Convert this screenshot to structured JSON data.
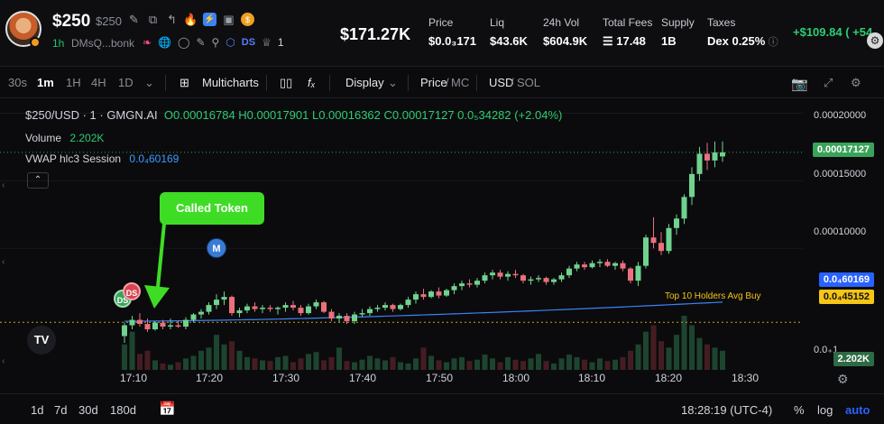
{
  "header": {
    "ticker": "$250",
    "ticker_sub": "$250",
    "timeframe": "1h",
    "address": "DMsQ...bonk",
    "ds_tag": "DS",
    "holders_count": "1",
    "market_cap": "$171.27K",
    "stats": [
      {
        "label": "Price",
        "value": "$0.0₃171"
      },
      {
        "label": "Liq",
        "value": "$43.6K"
      },
      {
        "label": "24h Vol",
        "value": "$604.9K"
      },
      {
        "label": "Total Fees",
        "value": "☰ 17.48"
      },
      {
        "label": "Supply",
        "value": "1B"
      },
      {
        "label": "Taxes",
        "value": "Dex 0.25%"
      }
    ],
    "pnl": "+$109.84 ( +54"
  },
  "toolbar": {
    "intervals": [
      "30s",
      "1m",
      "1H",
      "4H",
      "1D"
    ],
    "active_interval": "1m",
    "multicharts": "Multicharts",
    "display": "Display",
    "price": "Price",
    "mc": "MC",
    "usd": "USD",
    "sol": "SOL"
  },
  "chart": {
    "title": "$250/USD · 1 · GMGN.AI",
    "ohlc": "O0.00016784 H0.00017901 L0.00016362 C0.00017127 0.0₅34282 (+2.04%)",
    "volume_label": "Volume",
    "volume_value": "2.202K",
    "vwap_label": "VWAP hlc3 Session",
    "vwap_value": "0.0₄60169",
    "called_label": "Called Token",
    "m_badge": "M",
    "ds_badge": "DS",
    "ds_badge2": "DS",
    "top10_label": "Top 10 Holders Avg Buy",
    "tv_logo": "TV",
    "price_axis": [
      "0.00020000",
      "0.00015000",
      "0.00010000",
      "0.0₊1"
    ],
    "price_tags": {
      "current": "0.00017127",
      "vwap": "0.0₄60169",
      "top10": "0.0₄45152",
      "volume": "2.202K"
    },
    "time_axis": [
      "17:10",
      "17:20",
      "17:30",
      "17:40",
      "17:50",
      "18:00",
      "18:10",
      "18:20",
      "18:30"
    ]
  },
  "chart_data": {
    "type": "candlestick",
    "title": "$250/USD · 1 · GMGN.AI",
    "x": [
      "17:09",
      "17:10",
      "17:11",
      "17:12",
      "17:13",
      "17:14",
      "17:15",
      "17:16",
      "17:17",
      "17:18",
      "17:19",
      "17:20",
      "17:21",
      "17:22",
      "17:23",
      "17:24",
      "17:25",
      "17:26",
      "17:27",
      "17:28",
      "17:29",
      "17:30",
      "17:31",
      "17:32",
      "17:33",
      "17:34",
      "17:35",
      "17:36",
      "17:37",
      "17:38",
      "17:39",
      "17:40",
      "17:41",
      "17:42",
      "17:43",
      "17:44",
      "17:45",
      "17:46",
      "17:47",
      "17:48",
      "17:49",
      "17:50",
      "17:51",
      "17:52",
      "17:53",
      "17:54",
      "17:55",
      "17:56",
      "17:57",
      "17:58",
      "17:59",
      "18:00",
      "18:01",
      "18:02",
      "18:03",
      "18:04",
      "18:05",
      "18:06",
      "18:07",
      "18:08",
      "18:09",
      "18:10",
      "18:11",
      "18:12",
      "18:13",
      "18:14",
      "18:15",
      "18:16",
      "18:17",
      "18:18",
      "18:19",
      "18:20",
      "18:21",
      "18:22",
      "18:23",
      "18:24",
      "18:25",
      "18:26",
      "18:27"
    ],
    "series": [
      {
        "name": "Candles",
        "ohlc": [
          [
            3.5e-05,
            4.5e-05,
            3e-05,
            4.3e-05
          ],
          [
            4.3e-05,
            5e-05,
            4e-05,
            4.7e-05
          ],
          [
            4.7e-05,
            5.2e-05,
            4.2e-05,
            4.4e-05
          ],
          [
            4.4e-05,
            4.8e-05,
            3.8e-05,
            4e-05
          ],
          [
            4e-05,
            4.6e-05,
            3.9e-05,
            4.5e-05
          ],
          [
            4.5e-05,
            4.7e-05,
            4e-05,
            4.2e-05
          ],
          [
            4.2e-05,
            4.8e-05,
            4e-05,
            4.3e-05
          ],
          [
            4.3e-05,
            4.6e-05,
            4.1e-05,
            4.2e-05
          ],
          [
            4.2e-05,
            4.9e-05,
            4e-05,
            4.7e-05
          ],
          [
            4.7e-05,
            5.2e-05,
            4.5e-05,
            5.1e-05
          ],
          [
            5.1e-05,
            5.5e-05,
            4.8e-05,
            5.3e-05
          ],
          [
            5.3e-05,
            6e-05,
            5.1e-05,
            5.8e-05
          ],
          [
            5.8e-05,
            6.6e-05,
            5.5e-05,
            6.2e-05
          ],
          [
            6.2e-05,
            6.8e-05,
            5.8e-05,
            6.4e-05
          ],
          [
            6.4e-05,
            6.5e-05,
            5e-05,
            5.2e-05
          ],
          [
            5.2e-05,
            5.6e-05,
            4.9e-05,
            5.4e-05
          ],
          [
            5.4e-05,
            5.9e-05,
            5.2e-05,
            5.7e-05
          ],
          [
            5.7e-05,
            6e-05,
            5.3e-05,
            5.5e-05
          ],
          [
            5.5e-05,
            5.8e-05,
            5.2e-05,
            5.6e-05
          ],
          [
            5.6e-05,
            5.8e-05,
            5.3e-05,
            5.5e-05
          ],
          [
            5.5e-05,
            5.7e-05,
            5.1e-05,
            5.6e-05
          ],
          [
            5.6e-05,
            6e-05,
            5.3e-05,
            5.8e-05
          ],
          [
            5.8e-05,
            6.1e-05,
            5.4e-05,
            5.6e-05
          ],
          [
            5.6e-05,
            5.8e-05,
            5e-05,
            5.2e-05
          ],
          [
            5.2e-05,
            5.9e-05,
            5.1e-05,
            5.7e-05
          ],
          [
            5.7e-05,
            6.2e-05,
            5.5e-05,
            6e-05
          ],
          [
            6e-05,
            6.1e-05,
            5.2e-05,
            5.3e-05
          ],
          [
            5.3e-05,
            5.5e-05,
            4.6e-05,
            4.8e-05
          ],
          [
            4.8e-05,
            5.2e-05,
            4.5e-05,
            5e-05
          ],
          [
            5e-05,
            5.2e-05,
            4.4e-05,
            4.6e-05
          ],
          [
            4.6e-05,
            5.3e-05,
            4.4e-05,
            5.1e-05
          ],
          [
            5.1e-05,
            5.5e-05,
            4.9e-05,
            5.2e-05
          ],
          [
            5.2e-05,
            5.7e-05,
            5e-05,
            5.5e-05
          ],
          [
            5.5e-05,
            5.8e-05,
            5.3e-05,
            5.6e-05
          ],
          [
            5.6e-05,
            6e-05,
            5.4e-05,
            5.8e-05
          ],
          [
            5.8e-05,
            5.9e-05,
            5.3e-05,
            5.5e-05
          ],
          [
            5.5e-05,
            5.9e-05,
            5.4e-05,
            5.8e-05
          ],
          [
            5.8e-05,
            6.4e-05,
            5.6e-05,
            6.2e-05
          ],
          [
            6.2e-05,
            6.8e-05,
            5.9e-05,
            6.6e-05
          ],
          [
            6.6e-05,
            7e-05,
            6.2e-05,
            6.4e-05
          ],
          [
            6.4e-05,
            6.9e-05,
            6.3e-05,
            6.8e-05
          ],
          [
            6.8e-05,
            7.1e-05,
            6.3e-05,
            6.5e-05
          ],
          [
            6.5e-05,
            7e-05,
            6.4e-05,
            6.9e-05
          ],
          [
            6.9e-05,
            7.4e-05,
            6.6e-05,
            7.2e-05
          ],
          [
            7.2e-05,
            7.6e-05,
            6.9e-05,
            7.4e-05
          ],
          [
            7.4e-05,
            7.7e-05,
            7.1e-05,
            7.3e-05
          ],
          [
            7.3e-05,
            7.8e-05,
            7.1e-05,
            7.6e-05
          ],
          [
            7.6e-05,
            8.2e-05,
            7.4e-05,
            8e-05
          ],
          [
            8e-05,
            8.4e-05,
            7.7e-05,
            8.2e-05
          ],
          [
            8.2e-05,
            8.4e-05,
            7.7e-05,
            7.9e-05
          ],
          [
            7.9e-05,
            8.3e-05,
            7.6e-05,
            8.1e-05
          ],
          [
            8.1e-05,
            8.4e-05,
            7.8e-05,
            8e-05
          ],
          [
            8e-05,
            8.1e-05,
            7.4e-05,
            7.6e-05
          ],
          [
            7.6e-05,
            7.9e-05,
            7.3e-05,
            7.7e-05
          ],
          [
            7.7e-05,
            8e-05,
            7.5e-05,
            7.8e-05
          ],
          [
            7.8e-05,
            7.9e-05,
            7.3e-05,
            7.5e-05
          ],
          [
            7.5e-05,
            7.8e-05,
            7.3e-05,
            7.7e-05
          ],
          [
            7.7e-05,
            8.2e-05,
            7.5e-05,
            8e-05
          ],
          [
            8e-05,
            8.7e-05,
            7.8e-05,
            8.5e-05
          ],
          [
            8.5e-05,
            9e-05,
            8.3e-05,
            8.8e-05
          ],
          [
            8.8e-05,
            9e-05,
            8.4e-05,
            8.6e-05
          ],
          [
            8.6e-05,
            9.1e-05,
            8.5e-05,
            8.9e-05
          ],
          [
            8.9e-05,
            9.2e-05,
            8.6e-05,
            9e-05
          ],
          [
            9e-05,
            9.2e-05,
            8.6e-05,
            8.7e-05
          ],
          [
            8.7e-05,
            9e-05,
            8.4e-05,
            8.9e-05
          ],
          [
            8.9e-05,
            9.1e-05,
            8.3e-05,
            8.5e-05
          ],
          [
            8.5e-05,
            8.6e-05,
            7.4e-05,
            7.6e-05
          ],
          [
            7.6e-05,
            9e-05,
            7.2e-05,
            8.7e-05
          ],
          [
            8.7e-05,
            0.00011,
            8.5e-05,
            0.000108
          ],
          [
            0.000108,
            0.000123,
            0.0001,
            0.000104
          ],
          [
            0.000104,
            0.000112,
            9.5e-05,
            9.8e-05
          ],
          [
            9.8e-05,
            0.000118,
            9.6e-05,
            0.000115
          ],
          [
            0.000115,
            0.000125,
            0.00011,
            0.000122
          ],
          [
            0.000122,
            0.00014,
            0.000118,
            0.000138
          ],
          [
            0.000138,
            0.00016,
            0.000132,
            0.000155
          ],
          [
            0.000155,
            0.000175,
            0.00015,
            0.00017
          ],
          [
            0.00017,
            0.000178,
            0.000158,
            0.000165
          ],
          [
            0.000165,
            0.000179,
            0.00016,
            0.000171
          ],
          [
            0.000168,
            0.000179,
            0.000164,
            0.000171
          ]
        ]
      },
      {
        "name": "Volume",
        "values": [
          40,
          60,
          25,
          30,
          15,
          10,
          8,
          12,
          18,
          22,
          30,
          35,
          55,
          40,
          45,
          30,
          20,
          18,
          15,
          14,
          20,
          22,
          12,
          18,
          25,
          28,
          15,
          20,
          35,
          14,
          12,
          16,
          22,
          18,
          15,
          20,
          12,
          10,
          18,
          35,
          22,
          15,
          12,
          18,
          20,
          14,
          16,
          24,
          18,
          12,
          20,
          16,
          14,
          18,
          25,
          14,
          10,
          18,
          24,
          20,
          16,
          12,
          18,
          14,
          16,
          20,
          30,
          40,
          60,
          70,
          45,
          35,
          55,
          85,
          70,
          50,
          40,
          35,
          30
        ]
      },
      {
        "name": "VWAP",
        "values_start": 4.6e-05,
        "values_end": 6.0169e-05
      }
    ],
    "ylim": [
      2e-05,
      0.000205
    ],
    "grid": true
  },
  "bottom": {
    "ranges": [
      "1d",
      "7d",
      "30d",
      "180d"
    ],
    "clock": "18:28:19 (UTC-4)",
    "pct": "%",
    "log": "log",
    "auto": "auto"
  }
}
